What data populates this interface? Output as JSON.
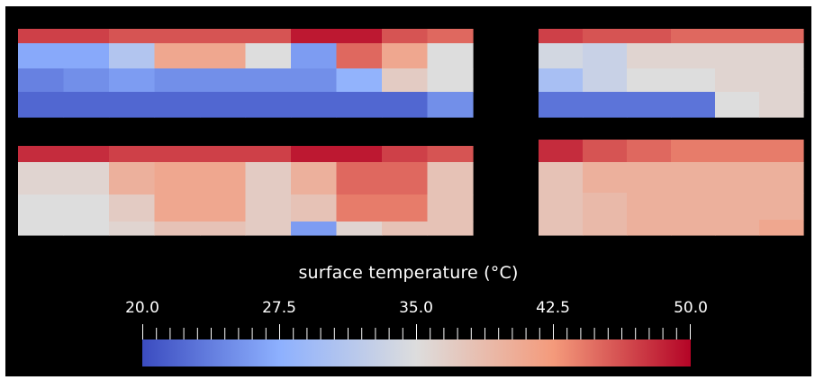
{
  "chart_data": {
    "type": "heatmap",
    "title": "surface temperature (°C)",
    "colormap": "coolwarm",
    "colormap_stops": [
      "#3b4cc0",
      "#8db0fe",
      "#dddddd",
      "#f49a7b",
      "#b40426"
    ],
    "range": [
      20.0,
      50.0
    ],
    "tick_labels": [
      "20.0",
      "27.5",
      "35.0",
      "42.5",
      "50.0"
    ],
    "tick_values": [
      20.0,
      27.5,
      35.0,
      42.5,
      50.0
    ],
    "minor_tick_count": 41,
    "background": "#000000",
    "panels": [
      {
        "name": "top-left",
        "cols": 10,
        "rows": [
          [
            47,
            47,
            46,
            46,
            46,
            46,
            49,
            49,
            46,
            45
          ],
          [
            27,
            27,
            31,
            41,
            41,
            35,
            26,
            45,
            41,
            35
          ],
          [
            24,
            25,
            26,
            25,
            25,
            25,
            25,
            28,
            37,
            35
          ],
          [
            22,
            22,
            22,
            22,
            22,
            22,
            22,
            22,
            22,
            25
          ]
        ]
      },
      {
        "name": "top-right",
        "cols": 6,
        "rows": [
          [
            47,
            46,
            46,
            45,
            45,
            45
          ],
          [
            34,
            33,
            36,
            36,
            36,
            36
          ],
          [
            30,
            33,
            35,
            35,
            36,
            36
          ],
          [
            23,
            23,
            23,
            23,
            35,
            36
          ]
        ]
      },
      {
        "name": "bottom-left",
        "cols": 10,
        "rows": [
          [
            48,
            48,
            47,
            47,
            47,
            47,
            49,
            49,
            47,
            46
          ],
          [
            36,
            36,
            40,
            41,
            41,
            37,
            40,
            45,
            45,
            38
          ],
          [
            35,
            35,
            37,
            41,
            41,
            37,
            38,
            44,
            44,
            38
          ],
          [
            35,
            35,
            36,
            38,
            38,
            37,
            26,
            36,
            38,
            38
          ]
        ]
      },
      {
        "name": "bottom-right",
        "cols": 6,
        "rows": [
          [
            48,
            46,
            45,
            44,
            44,
            44
          ],
          [
            38,
            40,
            40,
            40,
            40,
            40
          ],
          [
            38,
            39,
            40,
            40,
            40,
            40
          ],
          [
            38,
            39,
            40,
            40,
            40,
            41
          ]
        ]
      }
    ]
  }
}
